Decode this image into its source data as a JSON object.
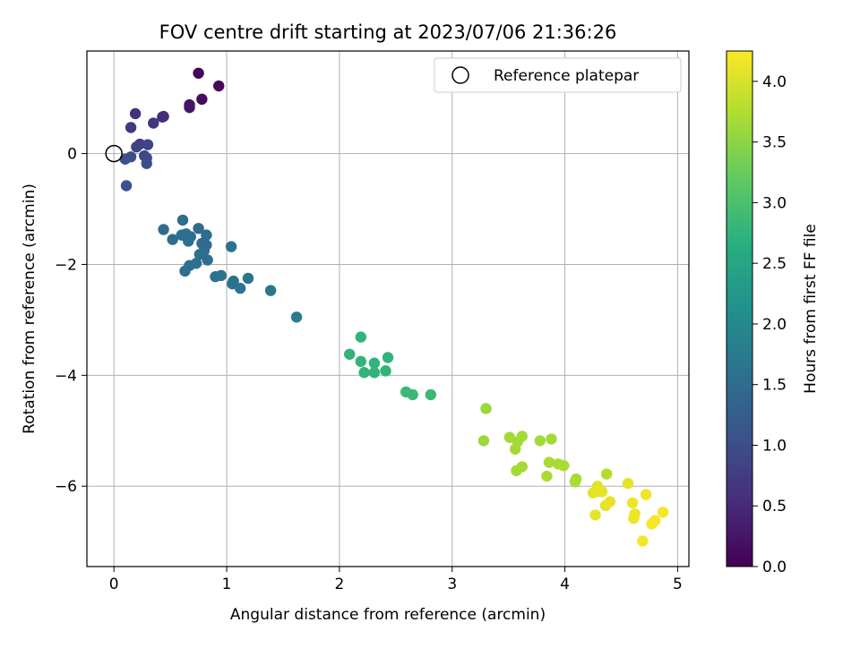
{
  "chart_data": {
    "type": "scatter",
    "title": "FOV centre drift starting at 2023/07/06 21:36:26",
    "xlabel": "Angular distance from reference (arcmin)",
    "ylabel": "Rotation from reference (arcmin)",
    "xlim": [
      -0.24,
      5.1
    ],
    "ylim": [
      -7.45,
      1.85
    ],
    "xticks": [
      0,
      1,
      2,
      3,
      4,
      5
    ],
    "xtick_labels": [
      "0",
      "1",
      "2",
      "3",
      "4",
      "5"
    ],
    "yticks": [
      0,
      -2,
      -4,
      -6
    ],
    "ytick_labels": [
      "0",
      "−2",
      "−4",
      "−6"
    ],
    "grid": true,
    "legend": {
      "position": "top-right",
      "label": "Reference platepar"
    },
    "reference_point": {
      "x": 0,
      "y": 0
    },
    "colorbar": {
      "label": "Hours from first FF file",
      "range": [
        0,
        4.25
      ],
      "ticks": [
        0,
        0.5,
        1,
        1.5,
        2,
        2.5,
        3,
        3.5,
        4
      ],
      "tick_labels": [
        "0.0",
        "0.5",
        "1.0",
        "1.5",
        "2.0",
        "2.5",
        "3.0",
        "3.5",
        "4.0"
      ],
      "colormap": "viridis"
    },
    "points": [
      {
        "x": 0.75,
        "y": 1.45,
        "t": 0.05
      },
      {
        "x": 0.93,
        "y": 1.22,
        "t": 0.1
      },
      {
        "x": 0.78,
        "y": 0.98,
        "t": 0.15
      },
      {
        "x": 0.67,
        "y": 0.88,
        "t": 0.2
      },
      {
        "x": 0.67,
        "y": 0.83,
        "t": 0.25
      },
      {
        "x": 0.44,
        "y": 0.67,
        "t": 0.5
      },
      {
        "x": 0.43,
        "y": 0.66,
        "t": 0.55
      },
      {
        "x": 0.19,
        "y": 0.72,
        "t": 0.6
      },
      {
        "x": 0.35,
        "y": 0.55,
        "t": 0.65
      },
      {
        "x": 0.15,
        "y": 0.47,
        "t": 0.7
      },
      {
        "x": 0.23,
        "y": 0.17,
        "t": 0.75
      },
      {
        "x": 0.2,
        "y": 0.12,
        "t": 0.8
      },
      {
        "x": 0.3,
        "y": 0.16,
        "t": 0.85
      },
      {
        "x": 0.27,
        "y": -0.04,
        "t": 0.9
      },
      {
        "x": 0.29,
        "y": -0.08,
        "t": 0.95
      },
      {
        "x": 0.29,
        "y": -0.18,
        "t": 1.0
      },
      {
        "x": 0.15,
        "y": -0.06,
        "t": 1.0
      },
      {
        "x": 0.1,
        "y": -0.1,
        "t": 1.05
      },
      {
        "x": 0.11,
        "y": -0.58,
        "t": 1.05
      },
      {
        "x": 0.44,
        "y": -1.37,
        "t": 1.5
      },
      {
        "x": 0.61,
        "y": -1.2,
        "t": 1.5
      },
      {
        "x": 0.52,
        "y": -1.55,
        "t": 1.5
      },
      {
        "x": 0.6,
        "y": -1.47,
        "t": 1.55
      },
      {
        "x": 0.64,
        "y": -1.45,
        "t": 1.55
      },
      {
        "x": 0.68,
        "y": -1.5,
        "t": 1.55
      },
      {
        "x": 0.66,
        "y": -1.58,
        "t": 1.55
      },
      {
        "x": 0.75,
        "y": -1.35,
        "t": 1.5
      },
      {
        "x": 0.82,
        "y": -1.47,
        "t": 1.5
      },
      {
        "x": 0.78,
        "y": -1.62,
        "t": 1.5
      },
      {
        "x": 0.82,
        "y": -1.65,
        "t": 1.5
      },
      {
        "x": 0.8,
        "y": -1.75,
        "t": 1.5
      },
      {
        "x": 0.76,
        "y": -1.82,
        "t": 1.55
      },
      {
        "x": 0.83,
        "y": -1.92,
        "t": 1.55
      },
      {
        "x": 0.73,
        "y": -1.98,
        "t": 1.55
      },
      {
        "x": 0.67,
        "y": -2.02,
        "t": 1.55
      },
      {
        "x": 0.63,
        "y": -2.12,
        "t": 1.55
      },
      {
        "x": 1.04,
        "y": -1.68,
        "t": 1.6
      },
      {
        "x": 0.9,
        "y": -2.22,
        "t": 1.6
      },
      {
        "x": 0.95,
        "y": -2.2,
        "t": 1.6
      },
      {
        "x": 1.05,
        "y": -2.35,
        "t": 1.6
      },
      {
        "x": 1.06,
        "y": -2.3,
        "t": 1.6
      },
      {
        "x": 1.12,
        "y": -2.43,
        "t": 1.65
      },
      {
        "x": 1.19,
        "y": -2.25,
        "t": 1.65
      },
      {
        "x": 1.39,
        "y": -2.47,
        "t": 1.7
      },
      {
        "x": 1.62,
        "y": -2.95,
        "t": 1.75
      },
      {
        "x": 2.19,
        "y": -3.31,
        "t": 2.75
      },
      {
        "x": 2.09,
        "y": -3.62,
        "t": 2.75
      },
      {
        "x": 2.19,
        "y": -3.75,
        "t": 2.75
      },
      {
        "x": 2.22,
        "y": -3.95,
        "t": 2.75
      },
      {
        "x": 2.31,
        "y": -3.78,
        "t": 2.75
      },
      {
        "x": 2.31,
        "y": -3.95,
        "t": 2.75
      },
      {
        "x": 2.41,
        "y": -3.92,
        "t": 2.75
      },
      {
        "x": 2.43,
        "y": -3.68,
        "t": 2.75
      },
      {
        "x": 2.59,
        "y": -4.3,
        "t": 2.85
      },
      {
        "x": 2.65,
        "y": -4.35,
        "t": 2.85
      },
      {
        "x": 2.81,
        "y": -4.35,
        "t": 2.85
      },
      {
        "x": 3.3,
        "y": -4.6,
        "t": 3.6
      },
      {
        "x": 3.28,
        "y": -5.18,
        "t": 3.6
      },
      {
        "x": 3.51,
        "y": -5.12,
        "t": 3.65
      },
      {
        "x": 3.56,
        "y": -5.33,
        "t": 3.65
      },
      {
        "x": 3.58,
        "y": -5.2,
        "t": 3.65
      },
      {
        "x": 3.62,
        "y": -5.1,
        "t": 3.65
      },
      {
        "x": 3.57,
        "y": -5.72,
        "t": 3.65
      },
      {
        "x": 3.62,
        "y": -5.65,
        "t": 3.65
      },
      {
        "x": 3.78,
        "y": -5.18,
        "t": 3.65
      },
      {
        "x": 3.88,
        "y": -5.15,
        "t": 3.65
      },
      {
        "x": 3.86,
        "y": -5.57,
        "t": 3.7
      },
      {
        "x": 3.84,
        "y": -5.82,
        "t": 3.7
      },
      {
        "x": 3.94,
        "y": -5.6,
        "t": 3.7
      },
      {
        "x": 3.99,
        "y": -5.63,
        "t": 3.7
      },
      {
        "x": 4.09,
        "y": -5.92,
        "t": 3.7
      },
      {
        "x": 4.1,
        "y": -5.87,
        "t": 3.7
      },
      {
        "x": 4.37,
        "y": -5.78,
        "t": 3.75
      },
      {
        "x": 4.25,
        "y": -6.12,
        "t": 4.1
      },
      {
        "x": 4.29,
        "y": -6.0,
        "t": 4.05
      },
      {
        "x": 4.28,
        "y": -6.1,
        "t": 4.1
      },
      {
        "x": 4.33,
        "y": -6.1,
        "t": 4.1
      },
      {
        "x": 4.36,
        "y": -6.35,
        "t": 4.1
      },
      {
        "x": 4.4,
        "y": -6.28,
        "t": 4.1
      },
      {
        "x": 4.27,
        "y": -6.52,
        "t": 4.1
      },
      {
        "x": 4.56,
        "y": -5.95,
        "t": 4.1
      },
      {
        "x": 4.6,
        "y": -6.3,
        "t": 4.15
      },
      {
        "x": 4.62,
        "y": -6.5,
        "t": 4.15
      },
      {
        "x": 4.61,
        "y": -6.58,
        "t": 4.15
      },
      {
        "x": 4.72,
        "y": -6.15,
        "t": 4.15
      },
      {
        "x": 4.77,
        "y": -6.68,
        "t": 4.2
      },
      {
        "x": 4.8,
        "y": -6.62,
        "t": 4.2
      },
      {
        "x": 4.87,
        "y": -6.47,
        "t": 4.2
      },
      {
        "x": 4.69,
        "y": -6.99,
        "t": 4.2
      }
    ]
  }
}
